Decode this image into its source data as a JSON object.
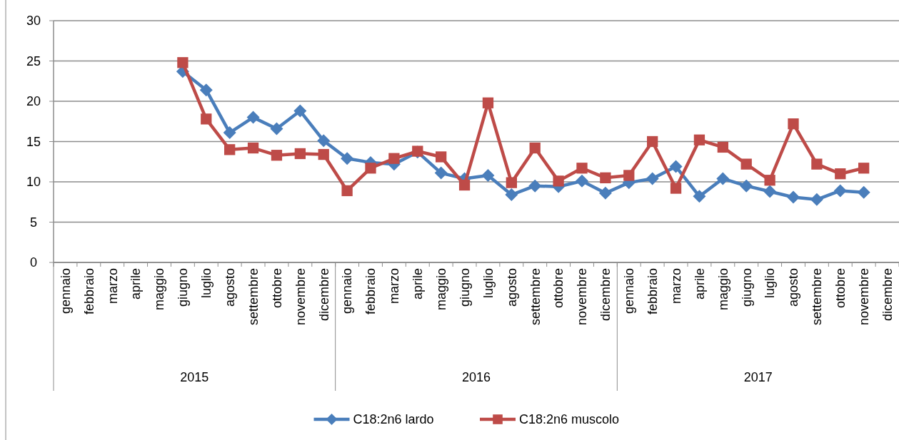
{
  "chart_data": {
    "type": "line",
    "categories": [
      "gennaio",
      "febbraio",
      "marzo",
      "aprile",
      "maggio",
      "giugno",
      "luglio",
      "agosto",
      "settembre",
      "ottobre",
      "novembre",
      "dicembre",
      "gennaio",
      "febbraio",
      "marzo",
      "aprile",
      "maggio",
      "giugno",
      "luglio",
      "agosto",
      "settembre",
      "ottobre",
      "novembre",
      "dicembre",
      "gennaio",
      "febbraio",
      "marzo",
      "aprile",
      "maggio",
      "giugno",
      "luglio",
      "agosto",
      "settembre",
      "ottobre",
      "novembre",
      "dicembre"
    ],
    "annotations": [
      "2015",
      "2016",
      "2017"
    ],
    "series": [
      {
        "name": "C18:2n6 lardo",
        "color": "#4a7ebb",
        "marker": "diamond",
        "values": [
          null,
          null,
          null,
          null,
          null,
          23.7,
          21.4,
          16.1,
          18.0,
          16.6,
          18.8,
          15.1,
          12.9,
          12.4,
          12.2,
          13.7,
          11.1,
          10.4,
          10.8,
          8.4,
          9.5,
          9.4,
          10.1,
          8.6,
          9.9,
          10.4,
          11.9,
          8.2,
          10.4,
          9.5,
          8.8,
          8.1,
          7.8,
          8.9,
          8.7,
          null
        ]
      },
      {
        "name": "C18:2n6 muscolo",
        "color": "#be4b48",
        "marker": "square",
        "values": [
          null,
          null,
          null,
          null,
          null,
          24.8,
          17.8,
          14.0,
          14.2,
          13.3,
          13.5,
          13.4,
          8.9,
          11.7,
          12.9,
          13.8,
          13.1,
          9.6,
          19.8,
          9.9,
          14.2,
          10.1,
          11.7,
          10.5,
          10.8,
          15.0,
          9.2,
          15.2,
          14.3,
          12.2,
          10.2,
          17.2,
          12.2,
          11.0,
          11.7,
          null
        ]
      }
    ],
    "ylim": [
      0,
      30
    ],
    "yticks": [
      0,
      5,
      10,
      15,
      20,
      25,
      30
    ],
    "grid": "y",
    "legend": "bottom"
  }
}
